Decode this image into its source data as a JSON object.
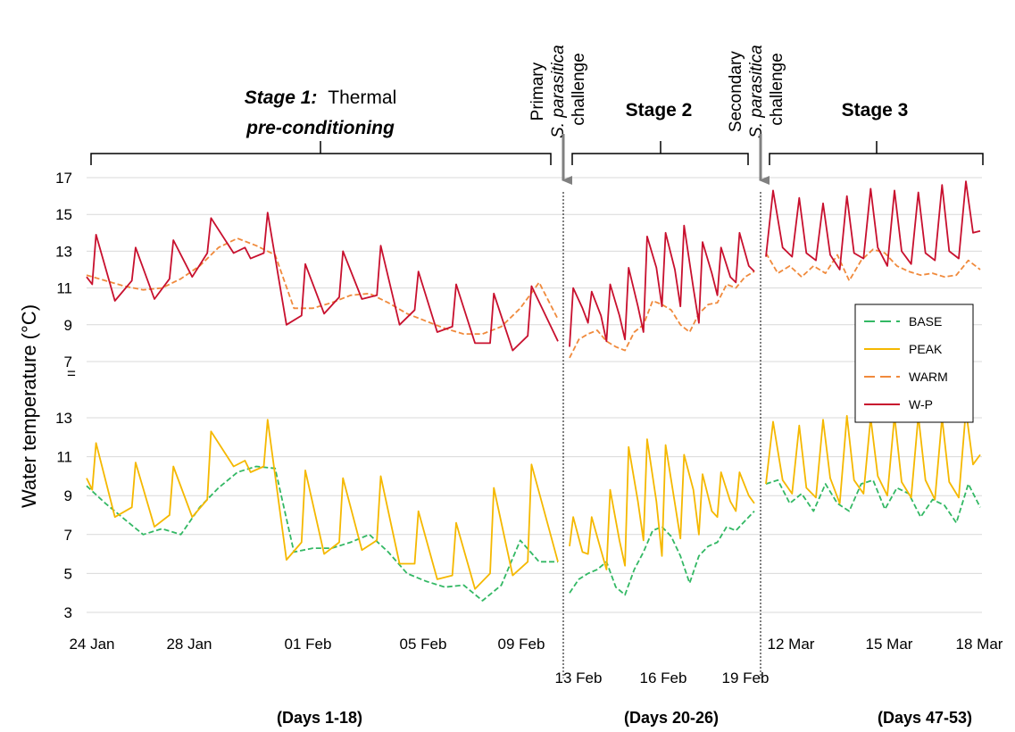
{
  "chart_data": {
    "type": "line",
    "ylabel": "Water temperature (°C)",
    "axis_break_symbol": "=",
    "legend": {
      "placement": "right",
      "items": [
        {
          "name": "BASE",
          "color": "#33b864",
          "dash": true
        },
        {
          "name": "PEAK",
          "color": "#f5b800",
          "dash": false
        },
        {
          "name": "WARM",
          "color": "#f08a3c",
          "dash": true
        },
        {
          "name": "W-P",
          "color": "#c8102e",
          "dash": false
        }
      ]
    },
    "colors": {
      "BASE": "#33b864",
      "PEAK": "#f5b800",
      "WARM": "#f08a3c",
      "W-P": "#c8102e",
      "arrow": "#808080"
    },
    "stage_headings": [
      {
        "italic": "Stage 1:",
        "normal": "Thermal",
        "line2": "pre-conditioning"
      },
      {
        "normal": "Stage 2"
      },
      {
        "normal": "Stage 3"
      }
    ],
    "challenges": [
      {
        "line1": "Primary",
        "line2": "S. parasitica",
        "line3": "challenge"
      },
      {
        "line1": "Secondary",
        "line2": "S. parasitica",
        "line3": "challenge"
      }
    ],
    "day_ranges": [
      "(Days 1-18)",
      "(Days 20-26)",
      "(Days 47-53)"
    ],
    "x_tick_labels": {
      "stage1": [
        "24 Jan",
        "28 Jan",
        "01 Feb",
        "05 Feb",
        "09 Feb"
      ],
      "stage2": [
        "13 Feb",
        "16 Feb",
        "19 Feb"
      ],
      "stage3": [
        "12 Mar",
        "15 Mar",
        "18 Mar"
      ]
    },
    "panels": [
      {
        "name": "upper",
        "yticks": [
          7,
          9,
          11,
          13,
          15,
          17
        ],
        "ylim": [
          7,
          17
        ]
      },
      {
        "name": "lower",
        "yticks": [
          3,
          5,
          7,
          9,
          11,
          13
        ],
        "ylim": [
          3,
          13
        ]
      }
    ],
    "series": [
      {
        "name": "W-P",
        "panel": "upper",
        "segments": [
          {
            "stage": 1,
            "x_days": [
              0,
              0.3,
              0.5,
              1.5,
              2.4,
              2.6,
              3.6,
              4.4,
              4.6,
              5.6,
              6.4,
              6.6,
              7.8,
              8.4,
              8.7,
              9.4,
              9.6,
              10.6,
              11.4,
              11.6,
              12.6,
              13.4,
              13.6,
              14.6,
              15.4,
              15.6,
              16.6,
              17.4,
              17.6,
              18.6,
              19.4,
              19.6,
              20.6,
              21.4,
              21.6,
              22.6,
              23.4,
              23.6,
              25.0
            ],
            "y": [
              11.6,
              11.2,
              13.9,
              10.3,
              11.4,
              13.2,
              10.4,
              11.5,
              13.6,
              11.6,
              12.9,
              14.8,
              12.9,
              13.2,
              12.6,
              12.9,
              15.1,
              9.0,
              9.5,
              12.3,
              9.6,
              10.5,
              13.0,
              10.4,
              10.6,
              13.3,
              9.0,
              9.8,
              11.9,
              8.6,
              8.9,
              11.2,
              8.0,
              8.0,
              10.7,
              7.6,
              8.4,
              11.1,
              8.1
            ]
          },
          {
            "stage": 2,
            "x_days": [
              0,
              0.2,
              0.7,
              1.0,
              1.2,
              1.7,
              2.0,
              2.2,
              2.7,
              3.0,
              3.2,
              3.7,
              4.0,
              4.2,
              4.7,
              5.0,
              5.2,
              5.7,
              6.0,
              6.2,
              6.7,
              7.0,
              7.2,
              7.7,
              8.0,
              8.2,
              8.7,
              9.0,
              9.2,
              9.7,
              10.0
            ],
            "y": [
              7.8,
              11.0,
              9.9,
              9.1,
              10.8,
              9.5,
              8.1,
              11.2,
              9.5,
              8.2,
              12.1,
              10.0,
              8.6,
              13.8,
              12.1,
              10.0,
              14.0,
              12.0,
              10.0,
              14.4,
              11.0,
              9.1,
              13.5,
              11.8,
              10.6,
              13.2,
              11.6,
              11.3,
              14.0,
              12.2,
              11.9
            ]
          },
          {
            "stage": 3,
            "x_days": [
              0,
              0.3,
              0.7,
              1.1,
              1.4,
              1.7,
              2.1,
              2.4,
              2.7,
              3.1,
              3.4,
              3.7,
              4.1,
              4.4,
              4.7,
              5.1,
              5.4,
              5.7,
              6.1,
              6.4,
              6.7,
              7.1,
              7.4,
              7.7,
              8.1,
              8.4,
              8.7,
              9.0
            ],
            "y": [
              12.7,
              16.3,
              13.2,
              12.7,
              15.9,
              12.9,
              12.5,
              15.6,
              12.8,
              12.0,
              16.0,
              12.9,
              12.6,
              16.4,
              13.2,
              12.2,
              16.3,
              13.0,
              12.3,
              16.2,
              12.9,
              12.5,
              16.6,
              13.0,
              12.6,
              16.8,
              14.0,
              14.1
            ]
          }
        ]
      },
      {
        "name": "WARM",
        "panel": "upper",
        "segments": [
          {
            "stage": 1,
            "x_days": [
              0,
              1,
              2,
              3,
              4,
              5,
              6,
              7,
              8,
              9,
              10,
              11,
              12,
              13,
              14,
              15,
              16,
              17,
              18,
              19,
              20,
              21,
              22,
              23,
              24,
              25
            ],
            "y": [
              11.7,
              11.4,
              11.1,
              10.9,
              11.0,
              11.5,
              12.2,
              13.2,
              13.7,
              13.3,
              12.8,
              9.9,
              9.9,
              10.2,
              10.6,
              10.7,
              10.2,
              9.6,
              9.2,
              8.8,
              8.5,
              8.5,
              8.9,
              9.9,
              11.3,
              9.3
            ]
          },
          {
            "stage": 2,
            "x_days": [
              0,
              0.5,
              1,
              1.5,
              2,
              2.5,
              3,
              3.5,
              4,
              4.5,
              5,
              5.5,
              6,
              6.5,
              7,
              7.5,
              8,
              8.5,
              9,
              9.5,
              10
            ],
            "y": [
              7.2,
              8.2,
              8.5,
              8.7,
              8.1,
              7.8,
              7.6,
              8.6,
              9.0,
              10.3,
              10.1,
              9.8,
              9.0,
              8.6,
              9.6,
              10.1,
              10.2,
              11.2,
              11.0,
              11.6,
              11.9
            ]
          },
          {
            "stage": 3,
            "x_days": [
              0,
              0.5,
              1,
              1.5,
              2,
              2.5,
              3,
              3.5,
              4,
              4.5,
              5,
              5.5,
              6,
              6.5,
              7,
              7.5,
              8,
              8.5,
              9
            ],
            "y": [
              12.9,
              11.8,
              12.2,
              11.6,
              12.2,
              11.8,
              12.8,
              11.4,
              12.5,
              13.1,
              12.9,
              12.2,
              11.9,
              11.7,
              11.8,
              11.6,
              11.7,
              12.5,
              12.0
            ]
          }
        ]
      },
      {
        "name": "PEAK",
        "panel": "lower",
        "segments": [
          {
            "stage": 1,
            "x_days": [
              0,
              0.3,
              0.5,
              1.5,
              2.4,
              2.6,
              3.6,
              4.4,
              4.6,
              5.6,
              6.4,
              6.6,
              7.8,
              8.4,
              8.7,
              9.4,
              9.6,
              10.6,
              11.4,
              11.6,
              12.6,
              13.4,
              13.6,
              14.6,
              15.4,
              15.6,
              16.6,
              17.4,
              17.6,
              18.6,
              19.4,
              19.6,
              20.6,
              21.4,
              21.6,
              22.6,
              23.4,
              23.6,
              25.0
            ],
            "y": [
              9.9,
              9.3,
              11.7,
              7.9,
              8.4,
              10.7,
              7.4,
              8.0,
              10.5,
              7.9,
              8.8,
              12.3,
              10.5,
              10.8,
              10.2,
              10.5,
              12.9,
              5.7,
              6.6,
              10.3,
              6.0,
              6.6,
              9.9,
              6.2,
              6.7,
              10.0,
              5.5,
              5.5,
              8.2,
              4.7,
              4.9,
              7.6,
              4.2,
              5.0,
              9.4,
              4.9,
              5.6,
              10.6,
              5.6
            ]
          },
          {
            "stage": 2,
            "x_days": [
              0,
              0.2,
              0.7,
              1.0,
              1.2,
              1.7,
              2.0,
              2.2,
              2.7,
              3.0,
              3.2,
              3.7,
              4.0,
              4.2,
              4.7,
              5.0,
              5.2,
              5.7,
              6.0,
              6.2,
              6.7,
              7.0,
              7.2,
              7.7,
              8.0,
              8.2,
              8.7,
              9.0,
              9.2,
              9.7,
              10.0
            ],
            "y": [
              6.4,
              7.9,
              6.1,
              6.0,
              7.9,
              6.2,
              5.2,
              9.3,
              6.7,
              5.4,
              11.5,
              8.7,
              6.7,
              11.9,
              8.7,
              5.9,
              11.6,
              8.6,
              6.8,
              11.1,
              9.3,
              7.0,
              10.1,
              8.2,
              7.9,
              10.2,
              8.7,
              8.2,
              10.2,
              9.0,
              8.6
            ]
          },
          {
            "stage": 3,
            "x_days": [
              0,
              0.3,
              0.7,
              1.1,
              1.4,
              1.7,
              2.1,
              2.4,
              2.7,
              3.1,
              3.4,
              3.7,
              4.1,
              4.4,
              4.7,
              5.1,
              5.4,
              5.7,
              6.1,
              6.4,
              6.7,
              7.1,
              7.4,
              7.7,
              8.1,
              8.4,
              8.7,
              9.0
            ],
            "y": [
              9.6,
              12.8,
              9.8,
              9.1,
              12.6,
              9.4,
              8.9,
              12.9,
              9.9,
              8.6,
              13.1,
              9.8,
              9.1,
              13.0,
              10.0,
              9.0,
              13.1,
              9.7,
              8.9,
              13.1,
              9.8,
              8.8,
              13.0,
              9.7,
              8.9,
              13.4,
              10.6,
              11.1
            ]
          }
        ]
      },
      {
        "name": "BASE",
        "panel": "lower",
        "segments": [
          {
            "stage": 1,
            "x_days": [
              0,
              1,
              2,
              3,
              4,
              5,
              6,
              7,
              8,
              9,
              10,
              11,
              12,
              13,
              14,
              15,
              16,
              17,
              18,
              19,
              20,
              21,
              22,
              23,
              24,
              25
            ],
            "y": [
              9.5,
              8.6,
              7.8,
              7.0,
              7.3,
              7.0,
              8.4,
              9.4,
              10.2,
              10.5,
              10.4,
              6.1,
              6.3,
              6.3,
              6.6,
              7.0,
              6.1,
              5.0,
              4.6,
              4.3,
              4.4,
              3.6,
              4.4,
              6.7,
              5.6,
              5.6
            ]
          },
          {
            "stage": 2,
            "x_days": [
              0,
              0.5,
              1,
              1.5,
              2,
              2.5,
              3,
              3.5,
              4,
              4.5,
              5,
              5.5,
              6,
              6.5,
              7,
              7.5,
              8,
              8.5,
              9,
              9.5,
              10
            ],
            "y": [
              4.0,
              4.7,
              5.0,
              5.2,
              5.6,
              4.3,
              3.9,
              5.2,
              6.1,
              7.2,
              7.4,
              6.9,
              5.9,
              4.5,
              5.9,
              6.4,
              6.6,
              7.4,
              7.2,
              7.7,
              8.2
            ]
          },
          {
            "stage": 3,
            "x_days": [
              0,
              0.5,
              1,
              1.5,
              2,
              2.5,
              3,
              3.5,
              4,
              4.5,
              5,
              5.5,
              6,
              6.5,
              7,
              7.5,
              8,
              8.5,
              9
            ],
            "y": [
              9.6,
              9.8,
              8.6,
              9.1,
              8.2,
              9.6,
              8.6,
              8.2,
              9.6,
              9.8,
              8.3,
              9.4,
              9.1,
              7.9,
              8.8,
              8.5,
              7.6,
              9.6,
              8.4
            ]
          }
        ]
      }
    ]
  }
}
